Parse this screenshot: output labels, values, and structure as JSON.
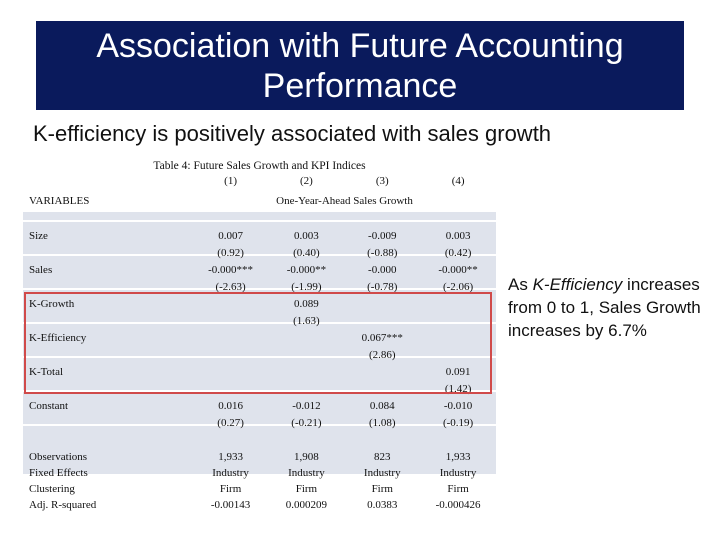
{
  "title": {
    "line1": "Association with Future Accounting",
    "line2": "Performance"
  },
  "subtitle": "K-efficiency is positively associated with sales growth",
  "table": {
    "caption": "Table 4: Future Sales Growth and KPI Indices",
    "col_numbers": [
      "(1)",
      "(2)",
      "(3)",
      "(4)"
    ],
    "variables_header": "VARIABLES",
    "dependent_label": "One-Year-Ahead Sales Growth",
    "rows": [
      {
        "var": "Size",
        "c1": "0.007",
        "c2": "0.003",
        "c3": "-0.009",
        "c4": "0.003"
      },
      {
        "var": "",
        "c1": "(0.92)",
        "c2": "(0.40)",
        "c3": "(-0.88)",
        "c4": "(0.42)"
      },
      {
        "var": "Sales",
        "c1": "-0.000***",
        "c2": "-0.000**",
        "c3": "-0.000",
        "c4": "-0.000**"
      },
      {
        "var": "",
        "c1": "(-2.63)",
        "c2": "(-1.99)",
        "c3": "(-0.78)",
        "c4": "(-2.06)"
      },
      {
        "var": "K-Growth",
        "c1": "",
        "c2": "0.089",
        "c3": "",
        "c4": ""
      },
      {
        "var": "",
        "c1": "",
        "c2": "(1.63)",
        "c3": "",
        "c4": ""
      },
      {
        "var": "K-Efficiency",
        "c1": "",
        "c2": "",
        "c3": "0.067***",
        "c4": ""
      },
      {
        "var": "",
        "c1": "",
        "c2": "",
        "c3": "(2.86)",
        "c4": ""
      },
      {
        "var": "K-Total",
        "c1": "",
        "c2": "",
        "c3": "",
        "c4": "0.091"
      },
      {
        "var": "",
        "c1": "",
        "c2": "",
        "c3": "",
        "c4": "(1.42)"
      },
      {
        "var": "Constant",
        "c1": "0.016",
        "c2": "-0.012",
        "c3": "0.084",
        "c4": "-0.010"
      },
      {
        "var": "",
        "c1": "(0.27)",
        "c2": "(-0.21)",
        "c3": "(1.08)",
        "c4": "(-0.19)"
      },
      {
        "var": "",
        "c1": "",
        "c2": "",
        "c3": "",
        "c4": ""
      },
      {
        "var": "Observations",
        "c1": "1,933",
        "c2": "1,908",
        "c3": "823",
        "c4": "1,933"
      },
      {
        "var": "Fixed Effects",
        "c1": "Industry",
        "c2": "Industry",
        "c3": "Industry",
        "c4": "Industry"
      },
      {
        "var": "Clustering",
        "c1": "Firm",
        "c2": "Firm",
        "c3": "Firm",
        "c4": "Firm"
      },
      {
        "var": "Adj. R-squared",
        "c1": "-0.00143",
        "c2": "0.000209",
        "c3": "0.0383",
        "c4": "-0.000426"
      }
    ]
  },
  "side_note": {
    "part1": "As ",
    "emph": "K-Efficiency",
    "part2": " increases from 0 to 1, Sales Growth increases by 6.7%"
  },
  "colors": {
    "title_bg": "#0a1a5c",
    "row_shade": "#dfe3ec",
    "highlight": "#d04a4a"
  }
}
